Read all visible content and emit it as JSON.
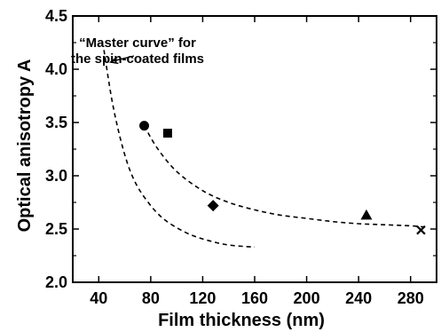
{
  "chart_data": {
    "type": "scatter",
    "xlabel": "Film thickness  (nm)",
    "ylabel": "Optical anisotropy A",
    "xlim": [
      20,
      300
    ],
    "ylim": [
      2.0,
      4.5
    ],
    "xticks": [
      40,
      80,
      120,
      160,
      200,
      240,
      280
    ],
    "xtick_labels": [
      "40",
      "80",
      "120",
      "160",
      "200",
      "240",
      "280"
    ],
    "yticks": [
      2.0,
      2.5,
      3.0,
      3.5,
      4.0,
      4.5
    ],
    "ytick_labels": [
      "2.0",
      "2.5",
      "3.0",
      "3.5",
      "4.0",
      "4.5"
    ],
    "grid": false,
    "points": [
      {
        "marker": "circle",
        "x": 75,
        "y": 3.47
      },
      {
        "marker": "square",
        "x": 93,
        "y": 3.4
      },
      {
        "marker": "diamond",
        "x": 128,
        "y": 2.72
      },
      {
        "marker": "triangle",
        "x": 246,
        "y": 2.63
      },
      {
        "marker": "x",
        "x": 288,
        "y": 2.49
      }
    ],
    "curves": [
      {
        "style": "dashed",
        "x": [
          44,
          50,
          56,
          62,
          68,
          75,
          85,
          95,
          110,
          125,
          140,
          160
        ],
        "y": [
          4.18,
          3.72,
          3.38,
          3.12,
          2.94,
          2.8,
          2.65,
          2.55,
          2.45,
          2.39,
          2.35,
          2.33
        ]
      },
      {
        "style": "dashed",
        "x": [
          75,
          85,
          100,
          120,
          140,
          160,
          180,
          200,
          220,
          240,
          260,
          280,
          290
        ],
        "y": [
          3.47,
          3.26,
          3.04,
          2.86,
          2.75,
          2.68,
          2.63,
          2.6,
          2.57,
          2.55,
          2.54,
          2.53,
          2.52
        ]
      }
    ],
    "annotations": [
      {
        "lines": [
          "“Master curve” for",
          "the spin-coated films"
        ],
        "arrow_to": {
          "x": 47,
          "y": 4.05
        }
      }
    ]
  }
}
